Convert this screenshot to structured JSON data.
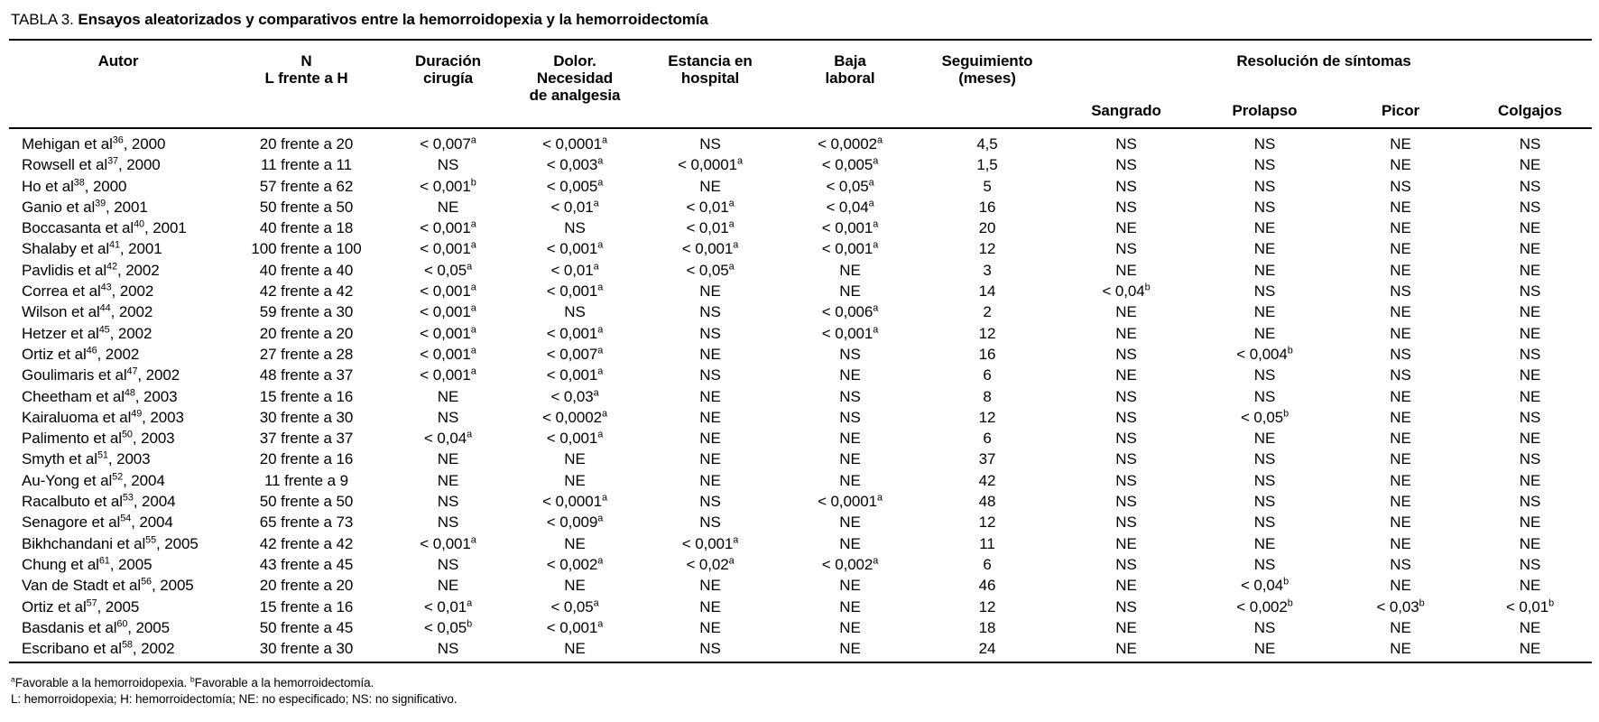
{
  "colors": {
    "ink": "#000000",
    "paper": "#ffffff"
  },
  "page": {
    "title_label": "TABLA 3.",
    "title_text": "Ensayos aleatorizados y comparativos entre la hemorroidopexia y la hemorroidectomía"
  },
  "table": {
    "headers": {
      "autor": "Autor",
      "n": "N\nL frente a H",
      "duracion": "Duración\ncirugía",
      "dolor": "Dolor.\nNecesidad\nde analgesia",
      "estancia": "Estancia en\nhospital",
      "baja": "Baja\nlaboral",
      "seguimiento": "Seguimiento\n(meses)",
      "resolucion": "Resolución de síntomas",
      "sangrado": "Sangrado",
      "prolapso": "Prolapso",
      "picor": "Picor",
      "colgajos": "Colgajos"
    },
    "rows": [
      {
        "autor": "Mehigan et al^36^, 2000",
        "n": "20 frente a 20",
        "duracion": "< 0,007^a^",
        "dolor": "< 0,0001^a^",
        "estancia": "NS",
        "baja": "< 0,0002^a^",
        "seguimiento": "4,5",
        "sangrado": "NS",
        "prolapso": "NS",
        "picor": "NE",
        "colgajos": "NS"
      },
      {
        "autor": "Rowsell et al^37^, 2000",
        "n": "11 frente a 11",
        "duracion": "NS",
        "dolor": "< 0,003^a^",
        "estancia": "< 0,0001^a^",
        "baja": "< 0,005^a^",
        "seguimiento": "1,5",
        "sangrado": "NS",
        "prolapso": "NS",
        "picor": "NE",
        "colgajos": "NE"
      },
      {
        "autor": "Ho et al^38^, 2000",
        "n": "57 frente a 62",
        "duracion": "< 0,001^b^",
        "dolor": "< 0,005^a^",
        "estancia": "NE",
        "baja": "< 0,05^a^",
        "seguimiento": "5",
        "sangrado": "NS",
        "prolapso": "NS",
        "picor": "NS",
        "colgajos": "NS"
      },
      {
        "autor": "Ganio et al^39^, 2001",
        "n": "50 frente a 50",
        "duracion": "NE",
        "dolor": "< 0,01^a^",
        "estancia": "< 0,01^a^",
        "baja": "< 0,04^a^",
        "seguimiento": "16",
        "sangrado": "NS",
        "prolapso": "NS",
        "picor": "NE",
        "colgajos": "NS"
      },
      {
        "autor": "Boccasanta et al^40^, 2001",
        "n": "40 frente a 18",
        "duracion": "< 0,001^a^",
        "dolor": "NS",
        "estancia": "< 0,01^a^",
        "baja": "< 0,001^a^",
        "seguimiento": "20",
        "sangrado": "NE",
        "prolapso": "NE",
        "picor": "NE",
        "colgajos": "NE"
      },
      {
        "autor": "Shalaby et al^41^, 2001",
        "n": "100 frente a 100",
        "duracion": "< 0,001^a^",
        "dolor": "< 0,001^a^",
        "estancia": "< 0,001^a^",
        "baja": "< 0,001^a^",
        "seguimiento": "12",
        "sangrado": "NS",
        "prolapso": "NE",
        "picor": "NE",
        "colgajos": "NE"
      },
      {
        "autor": "Pavlidis et al^42^, 2002",
        "n": "40 frente a 40",
        "duracion": "< 0,05^a^",
        "dolor": "< 0,01^a^",
        "estancia": "< 0,05^a^",
        "baja": "NE",
        "seguimiento": "3",
        "sangrado": "NE",
        "prolapso": "NE",
        "picor": "NE",
        "colgajos": "NE"
      },
      {
        "autor": "Correa et al^43^, 2002",
        "n": "42 frente a 42",
        "duracion": "< 0,001^a^",
        "dolor": "< 0,001^a^",
        "estancia": "NE",
        "baja": "NE",
        "seguimiento": "14",
        "sangrado": "< 0,04^b^",
        "prolapso": "NS",
        "picor": "NS",
        "colgajos": "NS"
      },
      {
        "autor": "Wilson et al^44^, 2002",
        "n": "59 frente a 30",
        "duracion": "< 0,001^a^",
        "dolor": "NS",
        "estancia": "NS",
        "baja": "< 0,006^a^",
        "seguimiento": "2",
        "sangrado": "NE",
        "prolapso": "NE",
        "picor": "NE",
        "colgajos": "NE"
      },
      {
        "autor": "Hetzer et al^45^, 2002",
        "n": "20 frente a 20",
        "duracion": "< 0,001^a^",
        "dolor": "< 0,001^a^",
        "estancia": "NS",
        "baja": "< 0,001^a^",
        "seguimiento": "12",
        "sangrado": "NE",
        "prolapso": "NE",
        "picor": "NE",
        "colgajos": "NE"
      },
      {
        "autor": "Ortiz et al^46^, 2002",
        "n": "27 frente a 28",
        "duracion": "< 0,001^a^",
        "dolor": "< 0,007^a^",
        "estancia": "NE",
        "baja": "NS",
        "seguimiento": "16",
        "sangrado": "NS",
        "prolapso": "< 0,004^b^",
        "picor": "NS",
        "colgajos": "NS"
      },
      {
        "autor": "Goulimaris et al^47^, 2002",
        "n": "48 frente a 37",
        "duracion": "< 0,001^a^",
        "dolor": "< 0,001^a^",
        "estancia": "NS",
        "baja": "NE",
        "seguimiento": "6",
        "sangrado": "NE",
        "prolapso": "NS",
        "picor": "NS",
        "colgajos": "NE"
      },
      {
        "autor": "Cheetham et al^48^, 2003",
        "n": "15 frente a 16",
        "duracion": "NE",
        "dolor": "< 0,03^a^",
        "estancia": "NE",
        "baja": "NS",
        "seguimiento": "8",
        "sangrado": "NS",
        "prolapso": "NS",
        "picor": "NE",
        "colgajos": "NE"
      },
      {
        "autor": "Kairaluoma et al^49^, 2003",
        "n": "30 frente a 30",
        "duracion": "NS",
        "dolor": "< 0,0002^a^",
        "estancia": "NE",
        "baja": "NS",
        "seguimiento": "12",
        "sangrado": "NS",
        "prolapso": "< 0,05^b^",
        "picor": "NE",
        "colgajos": "NS"
      },
      {
        "autor": "Palimento et al^50^, 2003",
        "n": "37 frente a 37",
        "duracion": "< 0,04^a^",
        "dolor": "< 0,001^a^",
        "estancia": "NE",
        "baja": "NE",
        "seguimiento": "6",
        "sangrado": "NS",
        "prolapso": "NE",
        "picor": "NE",
        "colgajos": "NE"
      },
      {
        "autor": "Smyth et al^51^, 2003",
        "n": "20 frente a 16",
        "duracion": "NE",
        "dolor": "NE",
        "estancia": "NE",
        "baja": "NE",
        "seguimiento": "37",
        "sangrado": "NS",
        "prolapso": "NS",
        "picor": "NE",
        "colgajos": "NS"
      },
      {
        "autor": "Au-Yong et al^52^, 2004",
        "n": "11 frente a 9",
        "duracion": "NE",
        "dolor": "NE",
        "estancia": "NE",
        "baja": "NE",
        "seguimiento": "42",
        "sangrado": "NS",
        "prolapso": "NS",
        "picor": "NE",
        "colgajos": "NE"
      },
      {
        "autor": "Racalbuto et al^53^, 2004",
        "n": "50 frente a 50",
        "duracion": "NS",
        "dolor": "< 0,0001^a^",
        "estancia": "NS",
        "baja": "< 0,0001^a^",
        "seguimiento": "48",
        "sangrado": "NS",
        "prolapso": "NS",
        "picor": "NE",
        "colgajos": "NS"
      },
      {
        "autor": "Senagore et al^54^, 2004",
        "n": "65 frente a 73",
        "duracion": "NS",
        "dolor": "< 0,009^a^",
        "estancia": "NS",
        "baja": "NE",
        "seguimiento": "12",
        "sangrado": "NS",
        "prolapso": "NS",
        "picor": "NE",
        "colgajos": "NE"
      },
      {
        "autor": "Bikhchandani et al^55^, 2005",
        "n": "42 frente a 42",
        "duracion": "< 0,001^a^",
        "dolor": "NE",
        "estancia": "< 0,001^a^",
        "baja": "NE",
        "seguimiento": "11",
        "sangrado": "NE",
        "prolapso": "NE",
        "picor": "NE",
        "colgajos": "NE"
      },
      {
        "autor": "Chung et al^61^, 2005",
        "n": "43 frente a 45",
        "duracion": "NS",
        "dolor": "< 0,002^a^",
        "estancia": "< 0,02^a^",
        "baja": "< 0,002^a^",
        "seguimiento": "6",
        "sangrado": "NS",
        "prolapso": "NS",
        "picor": "NS",
        "colgajos": "NS"
      },
      {
        "autor": "Van de Stadt et al^56^, 2005",
        "n": "20 frente a 20",
        "duracion": "NE",
        "dolor": "NE",
        "estancia": "NE",
        "baja": "NE",
        "seguimiento": "46",
        "sangrado": "NE",
        "prolapso": "< 0,04^b^",
        "picor": "NE",
        "colgajos": "NE"
      },
      {
        "autor": "Ortiz et al^57^, 2005",
        "n": "15 frente a 16",
        "duracion": "< 0,01^a^",
        "dolor": "< 0,05^a^",
        "estancia": "NE",
        "baja": "NE",
        "seguimiento": "12",
        "sangrado": "NS",
        "prolapso": "< 0,002^b^",
        "picor": "< 0,03^b^",
        "colgajos": "< 0,01^b^"
      },
      {
        "autor": "Basdanis et al^60^, 2005",
        "n": "50 frente a 45",
        "duracion": "< 0,05^b^",
        "dolor": "< 0,001^a^",
        "estancia": "NE",
        "baja": "NE",
        "seguimiento": "18",
        "sangrado": "NE",
        "prolapso": "NS",
        "picor": "NE",
        "colgajos": "NE"
      },
      {
        "autor": "Escribano et al^58^, 2002",
        "n": "30 frente a 30",
        "duracion": "NS",
        "dolor": "NE",
        "estancia": "NS",
        "baja": "NE",
        "seguimiento": "24",
        "sangrado": "NE",
        "prolapso": "NE",
        "picor": "NE",
        "colgajos": "NE"
      }
    ]
  },
  "footnotes": {
    "line1": "^a^Favorable a la hemorroidopexia. ^b^Favorable a la hemorroidectomía.",
    "line2": "L: hemorroidopexia; H: hemorroidectomía; NE: no especificado; NS: no significativo."
  }
}
